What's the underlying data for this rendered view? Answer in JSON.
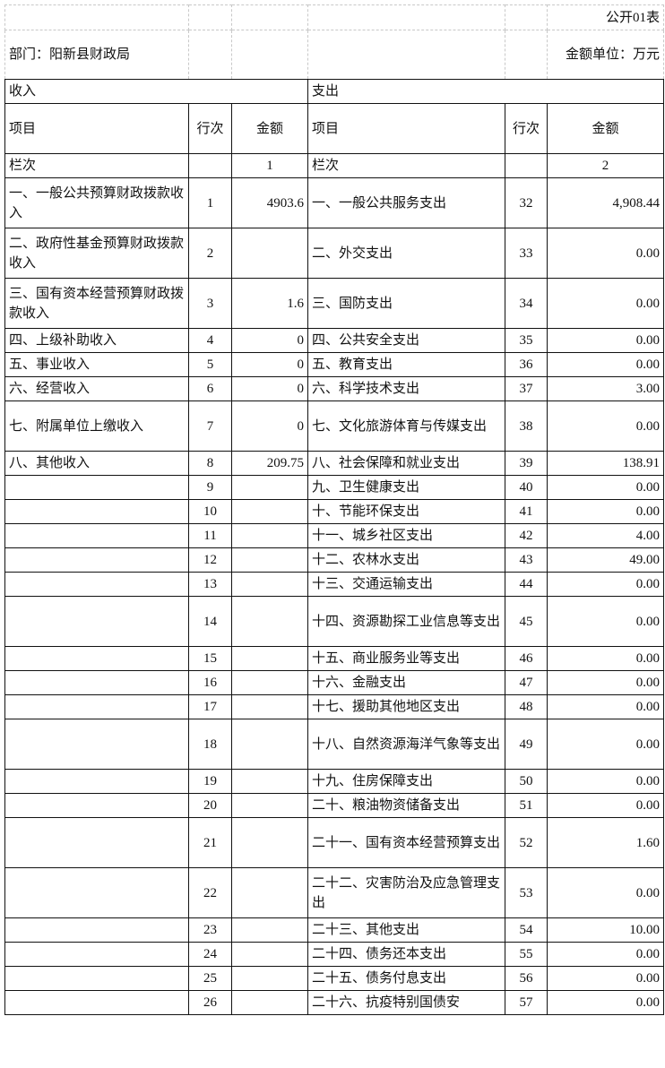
{
  "header": {
    "form_no": "公开01表",
    "department": "部门：阳新县财政局",
    "unit": "金额单位：万元"
  },
  "sections": {
    "income": "收入",
    "expense": "支出"
  },
  "columns": {
    "item": "项目",
    "row_no": "行次",
    "amount": "金额"
  },
  "column_index_row": {
    "label": "栏次",
    "income_col": "1",
    "expense_col": "2"
  },
  "rows": [
    {
      "in_item": "一、一般公共预算财政拨款收入",
      "in_no": "1",
      "in_amt": "4903.6",
      "ex_item": "一、一般公共服务支出",
      "ex_no": "32",
      "ex_amt": "4,908.44",
      "tall": true
    },
    {
      "in_item": "二、政府性基金预算财政拨款收入",
      "in_no": "2",
      "in_amt": "",
      "ex_item": "二、外交支出",
      "ex_no": "33",
      "ex_amt": "0.00",
      "tall": true
    },
    {
      "in_item": "三、国有资本经营预算财政拨款收入",
      "in_no": "3",
      "in_amt": "1.6",
      "ex_item": "三、国防支出",
      "ex_no": "34",
      "ex_amt": "0.00",
      "tall": true
    },
    {
      "in_item": "四、上级补助收入",
      "in_no": "4",
      "in_amt": "0",
      "ex_item": "四、公共安全支出",
      "ex_no": "35",
      "ex_amt": "0.00"
    },
    {
      "in_item": "五、事业收入",
      "in_no": "5",
      "in_amt": "0",
      "ex_item": "五、教育支出",
      "ex_no": "36",
      "ex_amt": "0.00"
    },
    {
      "in_item": "六、经营收入",
      "in_no": "6",
      "in_amt": "0",
      "ex_item": "六、科学技术支出",
      "ex_no": "37",
      "ex_amt": "3.00"
    },
    {
      "in_item": "七、附属单位上缴收入",
      "in_no": "7",
      "in_amt": "0",
      "ex_item": "七、文化旅游体育与传媒支出",
      "ex_no": "38",
      "ex_amt": "0.00",
      "tall": true
    },
    {
      "in_item": "八、其他收入",
      "in_no": "8",
      "in_amt": "209.75",
      "ex_item": "八、社会保障和就业支出",
      "ex_no": "39",
      "ex_amt": "138.91"
    },
    {
      "in_item": "",
      "in_no": "9",
      "in_amt": "",
      "ex_item": "九、卫生健康支出",
      "ex_no": "40",
      "ex_amt": "0.00"
    },
    {
      "in_item": "",
      "in_no": "10",
      "in_amt": "",
      "ex_item": "十、节能环保支出",
      "ex_no": "41",
      "ex_amt": "0.00"
    },
    {
      "in_item": "",
      "in_no": "11",
      "in_amt": "",
      "ex_item": "十一、城乡社区支出",
      "ex_no": "42",
      "ex_amt": "4.00"
    },
    {
      "in_item": "",
      "in_no": "12",
      "in_amt": "",
      "ex_item": "十二、农林水支出",
      "ex_no": "43",
      "ex_amt": "49.00"
    },
    {
      "in_item": "",
      "in_no": "13",
      "in_amt": "",
      "ex_item": "十三、交通运输支出",
      "ex_no": "44",
      "ex_amt": "0.00"
    },
    {
      "in_item": "",
      "in_no": "14",
      "in_amt": "",
      "ex_item": "十四、资源勘探工业信息等支出",
      "ex_no": "45",
      "ex_amt": "0.00",
      "tall": true
    },
    {
      "in_item": "",
      "in_no": "15",
      "in_amt": "",
      "ex_item": "十五、商业服务业等支出",
      "ex_no": "46",
      "ex_amt": "0.00"
    },
    {
      "in_item": "",
      "in_no": "16",
      "in_amt": "",
      "ex_item": "十六、金融支出",
      "ex_no": "47",
      "ex_amt": "0.00"
    },
    {
      "in_item": "",
      "in_no": "17",
      "in_amt": "",
      "ex_item": "十七、援助其他地区支出",
      "ex_no": "48",
      "ex_amt": "0.00"
    },
    {
      "in_item": "",
      "in_no": "18",
      "in_amt": "",
      "ex_item": "十八、自然资源海洋气象等支出",
      "ex_no": "49",
      "ex_amt": "0.00",
      "tall": true
    },
    {
      "in_item": "",
      "in_no": "19",
      "in_amt": "",
      "ex_item": "十九、住房保障支出",
      "ex_no": "50",
      "ex_amt": "0.00"
    },
    {
      "in_item": "",
      "in_no": "20",
      "in_amt": "",
      "ex_item": "二十、粮油物资储备支出",
      "ex_no": "51",
      "ex_amt": "0.00"
    },
    {
      "in_item": "",
      "in_no": "21",
      "in_amt": "",
      "ex_item": "二十一、国有资本经营预算支出",
      "ex_no": "52",
      "ex_amt": "1.60",
      "tall": true
    },
    {
      "in_item": "",
      "in_no": "22",
      "in_amt": "",
      "ex_item": "二十二、灾害防治及应急管理支出",
      "ex_no": "53",
      "ex_amt": "0.00",
      "tall": true
    },
    {
      "in_item": "",
      "in_no": "23",
      "in_amt": "",
      "ex_item": "二十三、其他支出",
      "ex_no": "54",
      "ex_amt": "10.00"
    },
    {
      "in_item": "",
      "in_no": "24",
      "in_amt": "",
      "ex_item": "二十四、债务还本支出",
      "ex_no": "55",
      "ex_amt": "0.00"
    },
    {
      "in_item": "",
      "in_no": "25",
      "in_amt": "",
      "ex_item": "二十五、债务付息支出",
      "ex_no": "56",
      "ex_amt": "0.00"
    },
    {
      "in_item": "",
      "in_no": "26",
      "in_amt": "",
      "ex_item": "二十六、抗疫特别国债安",
      "ex_no": "57",
      "ex_amt": "0.00"
    }
  ]
}
